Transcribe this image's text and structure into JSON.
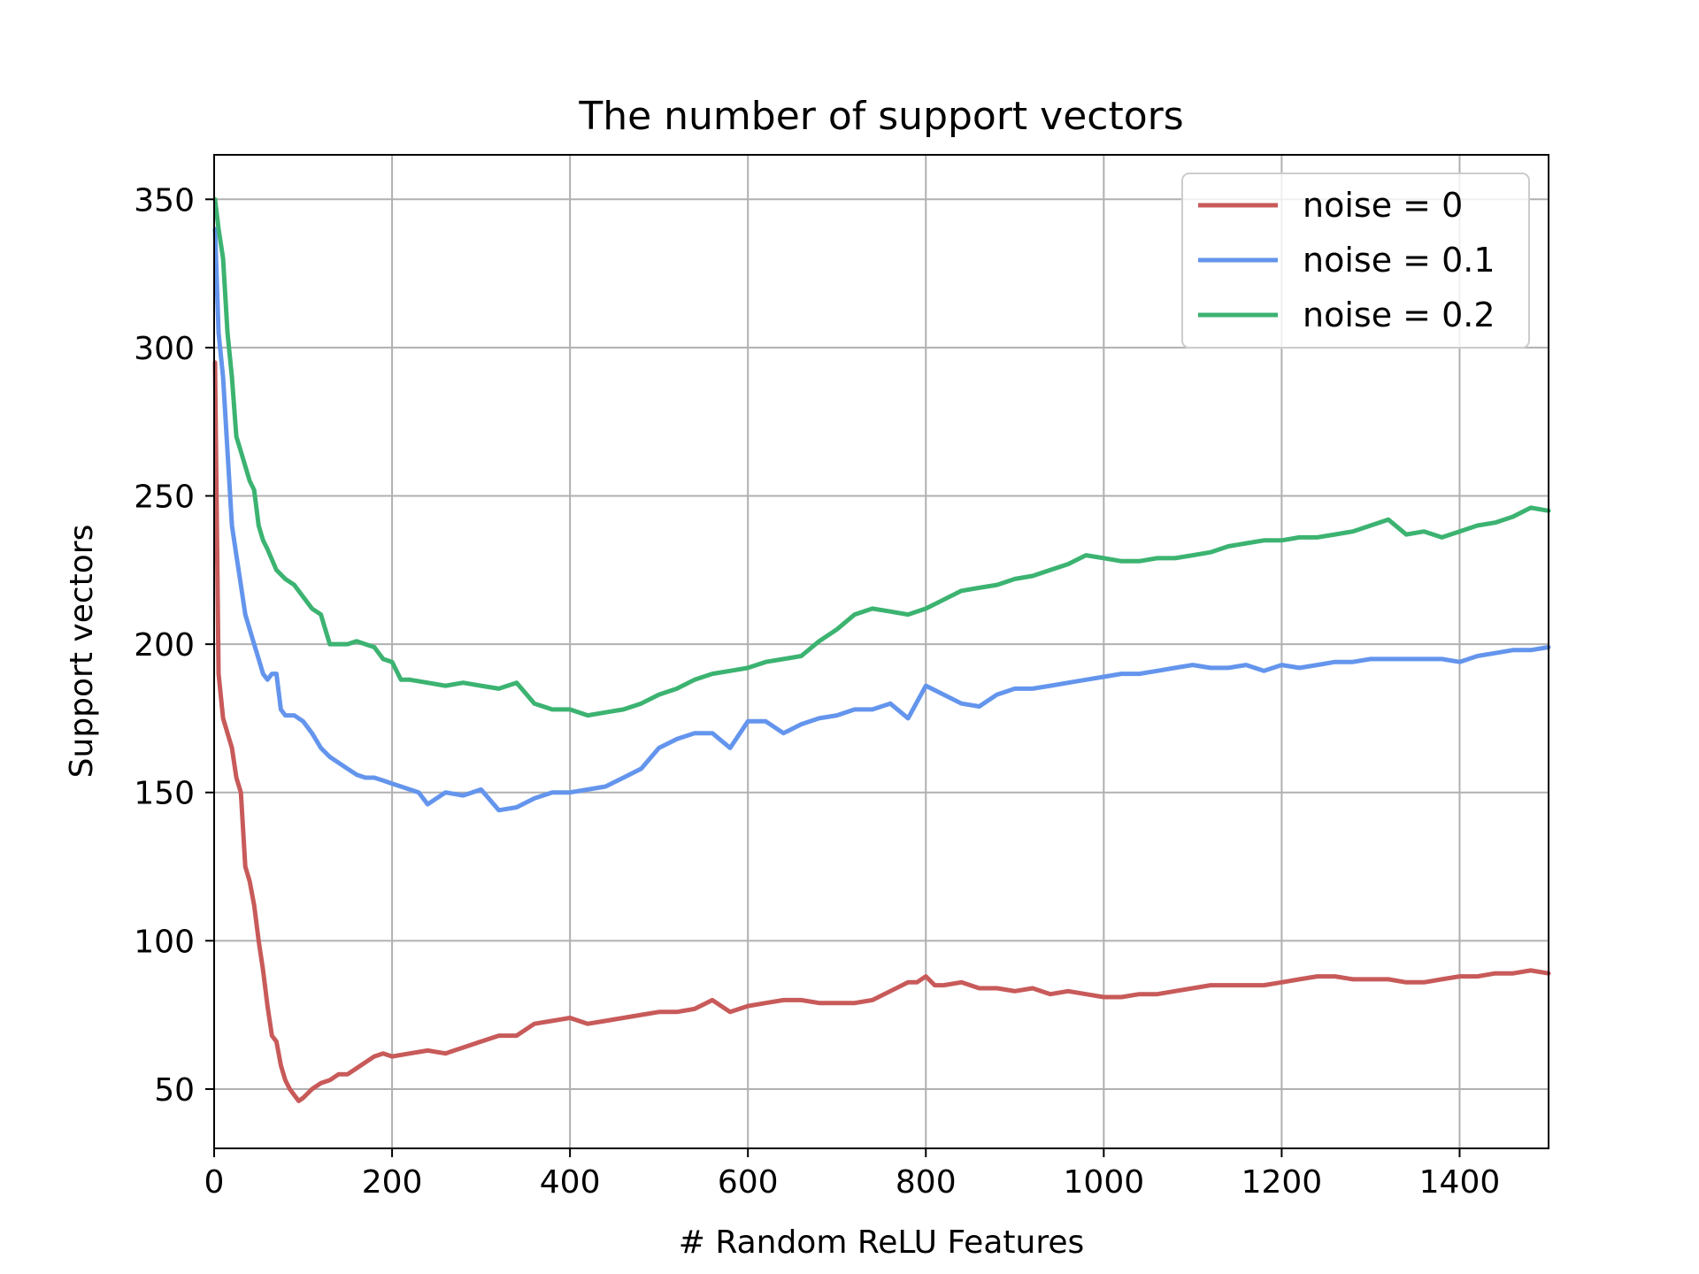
{
  "chart_data": {
    "type": "line",
    "title": "The number of support vectors",
    "xlabel": "# Random ReLU Features",
    "ylabel": "Support vectors",
    "xlim": [
      0,
      1500
    ],
    "ylim": [
      30,
      365
    ],
    "xticks": [
      0,
      200,
      400,
      600,
      800,
      1000,
      1200,
      1400
    ],
    "yticks": [
      50,
      100,
      150,
      200,
      250,
      300,
      350
    ],
    "grid": true,
    "legend_position": "top-right",
    "series": [
      {
        "name": "noise = 0",
        "color": "#c85a5a",
        "x": [
          1,
          5,
          10,
          15,
          20,
          25,
          30,
          35,
          40,
          45,
          50,
          55,
          60,
          65,
          70,
          75,
          80,
          85,
          90,
          95,
          100,
          110,
          120,
          130,
          140,
          150,
          160,
          170,
          180,
          190,
          200,
          220,
          240,
          260,
          280,
          300,
          320,
          340,
          360,
          380,
          400,
          420,
          440,
          460,
          480,
          500,
          520,
          540,
          560,
          580,
          600,
          620,
          640,
          660,
          680,
          700,
          720,
          740,
          760,
          780,
          790,
          800,
          810,
          820,
          840,
          860,
          880,
          900,
          920,
          940,
          960,
          980,
          1000,
          1020,
          1040,
          1060,
          1080,
          1100,
          1120,
          1140,
          1160,
          1180,
          1200,
          1220,
          1240,
          1260,
          1280,
          1300,
          1320,
          1340,
          1360,
          1380,
          1400,
          1420,
          1440,
          1460,
          1480,
          1500
        ],
        "y": [
          295,
          190,
          175,
          170,
          165,
          155,
          150,
          125,
          120,
          112,
          100,
          90,
          78,
          68,
          66,
          58,
          53,
          50,
          48,
          46,
          47,
          50,
          52,
          53,
          55,
          55,
          57,
          59,
          61,
          62,
          61,
          62,
          63,
          62,
          64,
          66,
          68,
          68,
          72,
          73,
          74,
          72,
          73,
          74,
          75,
          76,
          76,
          77,
          80,
          76,
          78,
          79,
          80,
          80,
          79,
          79,
          79,
          80,
          83,
          86,
          86,
          88,
          85,
          85,
          86,
          84,
          84,
          83,
          84,
          82,
          83,
          82,
          81,
          81,
          82,
          82,
          83,
          84,
          85,
          85,
          85,
          85,
          86,
          87,
          88,
          88,
          87,
          87,
          87,
          86,
          86,
          87,
          88,
          88,
          89,
          89,
          90,
          89
        ]
      },
      {
        "name": "noise = 0.1",
        "color": "#6495ed",
        "x": [
          1,
          5,
          10,
          15,
          20,
          25,
          30,
          35,
          40,
          45,
          50,
          55,
          60,
          65,
          70,
          75,
          80,
          90,
          100,
          110,
          120,
          130,
          140,
          150,
          160,
          170,
          180,
          190,
          200,
          210,
          220,
          230,
          240,
          260,
          280,
          300,
          320,
          340,
          360,
          380,
          400,
          420,
          440,
          460,
          480,
          500,
          520,
          540,
          560,
          580,
          600,
          620,
          640,
          660,
          680,
          700,
          720,
          740,
          760,
          780,
          800,
          820,
          840,
          860,
          880,
          900,
          920,
          940,
          960,
          980,
          1000,
          1020,
          1040,
          1060,
          1080,
          1100,
          1120,
          1140,
          1160,
          1180,
          1200,
          1220,
          1240,
          1260,
          1280,
          1300,
          1320,
          1340,
          1360,
          1380,
          1400,
          1420,
          1440,
          1460,
          1480,
          1500
        ],
        "y": [
          340,
          305,
          290,
          265,
          240,
          230,
          220,
          210,
          205,
          200,
          195,
          190,
          188,
          190,
          190,
          178,
          176,
          176,
          174,
          170,
          165,
          162,
          160,
          158,
          156,
          155,
          155,
          154,
          153,
          152,
          151,
          150,
          146,
          150,
          149,
          151,
          144,
          145,
          148,
          150,
          150,
          151,
          152,
          155,
          158,
          165,
          168,
          170,
          170,
          165,
          174,
          174,
          170,
          173,
          175,
          176,
          178,
          178,
          180,
          175,
          186,
          183,
          180,
          179,
          183,
          185,
          185,
          186,
          187,
          188,
          189,
          190,
          190,
          191,
          192,
          193,
          192,
          192,
          193,
          191,
          193,
          192,
          193,
          194,
          194,
          195,
          195,
          195,
          195,
          195,
          194,
          196,
          197,
          198,
          198,
          199
        ]
      },
      {
        "name": "noise = 0.2",
        "color": "#3cb371",
        "x": [
          1,
          5,
          10,
          15,
          20,
          25,
          30,
          35,
          40,
          45,
          50,
          55,
          60,
          70,
          80,
          90,
          100,
          110,
          120,
          130,
          140,
          150,
          160,
          170,
          180,
          190,
          200,
          210,
          220,
          240,
          260,
          280,
          300,
          320,
          340,
          360,
          380,
          400,
          420,
          440,
          460,
          480,
          500,
          520,
          540,
          560,
          580,
          600,
          620,
          640,
          660,
          680,
          700,
          720,
          740,
          760,
          780,
          800,
          820,
          840,
          860,
          880,
          900,
          920,
          940,
          960,
          980,
          1000,
          1020,
          1040,
          1060,
          1080,
          1100,
          1120,
          1140,
          1160,
          1180,
          1200,
          1220,
          1240,
          1260,
          1280,
          1300,
          1320,
          1340,
          1360,
          1380,
          1400,
          1420,
          1440,
          1460,
          1480,
          1500
        ],
        "y": [
          350,
          340,
          330,
          305,
          290,
          270,
          265,
          260,
          255,
          252,
          240,
          235,
          232,
          225,
          222,
          220,
          216,
          212,
          210,
          200,
          200,
          200,
          201,
          200,
          199,
          195,
          194,
          188,
          188,
          187,
          186,
          187,
          186,
          185,
          187,
          180,
          178,
          178,
          176,
          177,
          178,
          180,
          183,
          185,
          188,
          190,
          191,
          192,
          194,
          195,
          196,
          201,
          205,
          210,
          212,
          211,
          210,
          212,
          215,
          218,
          219,
          220,
          222,
          223,
          225,
          227,
          230,
          229,
          228,
          228,
          229,
          229,
          230,
          231,
          233,
          234,
          235,
          235,
          236,
          236,
          237,
          238,
          240,
          242,
          237,
          238,
          236,
          238,
          240,
          241,
          243,
          246,
          245
        ]
      }
    ]
  }
}
